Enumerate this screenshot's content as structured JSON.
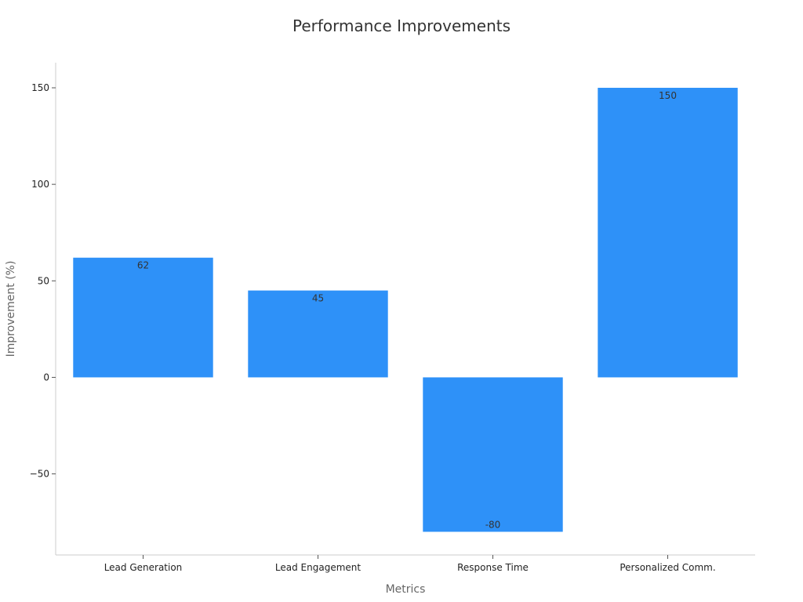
{
  "chart_data": {
    "type": "bar",
    "title": "Performance Improvements",
    "xlabel": "Metrics",
    "ylabel": "Improvement (%)",
    "categories": [
      "Lead Generation",
      "Lead Engagement",
      "Response Time",
      "Personalized Comm."
    ],
    "values": [
      62,
      45,
      -80,
      150
    ],
    "data_labels": [
      "62",
      "45",
      "-80",
      "150"
    ],
    "ylim": [
      -92,
      163
    ],
    "yticks": [
      -50,
      0,
      50,
      100,
      150
    ],
    "ytick_labels": [
      "−50",
      "0",
      "50",
      "100",
      "150"
    ],
    "grid": false,
    "bar_color": "#2e91f8"
  }
}
